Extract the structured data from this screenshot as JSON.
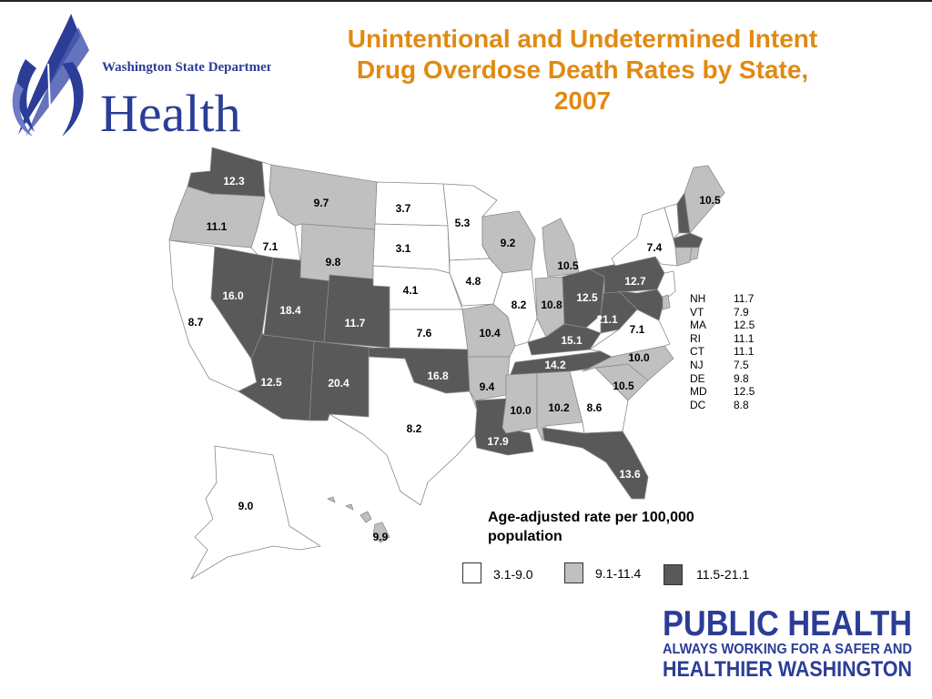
{
  "logo": {
    "org_line": "Washington State Department of",
    "org_word": "Health"
  },
  "title": {
    "line1": "Unintentional and Undetermined Intent",
    "line2": "Drug Overdose Death Rates by State,",
    "line3": "2007"
  },
  "colors": {
    "low": "#ffffff",
    "mid": "#c0c0c0",
    "high": "#595959",
    "title": "#e08a12",
    "brand": "#2b3d97"
  },
  "map_labels": [
    {
      "state": "WA",
      "value": "12.3"
    },
    {
      "state": "OR",
      "value": "11.1"
    },
    {
      "state": "CA",
      "value": "8.7"
    },
    {
      "state": "ID",
      "value": "7.1"
    },
    {
      "state": "NV",
      "value": "16.0"
    },
    {
      "state": "UT",
      "value": "18.4"
    },
    {
      "state": "AZ",
      "value": "12.5"
    },
    {
      "state": "MT",
      "value": "9.7"
    },
    {
      "state": "WY",
      "value": "9.8"
    },
    {
      "state": "CO",
      "value": "11.7"
    },
    {
      "state": "NM",
      "value": "20.4"
    },
    {
      "state": "ND",
      "value": "3.7"
    },
    {
      "state": "SD",
      "value": "3.1"
    },
    {
      "state": "NE",
      "value": "4.1"
    },
    {
      "state": "KS",
      "value": "7.6"
    },
    {
      "state": "OK",
      "value": "16.8"
    },
    {
      "state": "TX",
      "value": "8.2"
    },
    {
      "state": "MN",
      "value": "5.3"
    },
    {
      "state": "IA",
      "value": "4.8"
    },
    {
      "state": "MO",
      "value": "10.4"
    },
    {
      "state": "AR",
      "value": "9.4"
    },
    {
      "state": "LA",
      "value": "17.9"
    },
    {
      "state": "WI",
      "value": "9.2"
    },
    {
      "state": "IL",
      "value": "8.2"
    },
    {
      "state": "MI",
      "value": "10.5"
    },
    {
      "state": "IN",
      "value": "10.8"
    },
    {
      "state": "OH",
      "value": "12.5"
    },
    {
      "state": "KY",
      "value": "15.1"
    },
    {
      "state": "TN",
      "value": "14.2"
    },
    {
      "state": "MS",
      "value": "10.0"
    },
    {
      "state": "AL",
      "value": "10.2"
    },
    {
      "state": "GA",
      "value": "8.6"
    },
    {
      "state": "FL",
      "value": "13.6"
    },
    {
      "state": "SC",
      "value": "10.5"
    },
    {
      "state": "NC",
      "value": "10.0"
    },
    {
      "state": "VA",
      "value": "7.1"
    },
    {
      "state": "WV",
      "value": "21.1"
    },
    {
      "state": "PA",
      "value": "12.7"
    },
    {
      "state": "NY",
      "value": "7.4"
    },
    {
      "state": "ME",
      "value": "10.5"
    },
    {
      "state": "AK",
      "value": "9.0"
    },
    {
      "state": "HI",
      "value": "9.9"
    }
  ],
  "small_states": [
    {
      "abbr": "NH",
      "value": "11.7"
    },
    {
      "abbr": "VT",
      "value": "7.9"
    },
    {
      "abbr": "MA",
      "value": "12.5"
    },
    {
      "abbr": "RI",
      "value": "11.1"
    },
    {
      "abbr": "CT",
      "value": "11.1"
    },
    {
      "abbr": "NJ",
      "value": "7.5"
    },
    {
      "abbr": "DE",
      "value": "9.8"
    },
    {
      "abbr": "MD",
      "value": "12.5"
    },
    {
      "abbr": "DC",
      "value": "8.8"
    }
  ],
  "legend": {
    "title_line1": "Age-adjusted rate per 100,000",
    "title_line2": "population",
    "items": [
      {
        "label": "3.1-9.0",
        "color": "#ffffff"
      },
      {
        "label": "9.1-11.4",
        "color": "#c0c0c0"
      },
      {
        "label": "11.5-21.1",
        "color": "#595959"
      }
    ]
  },
  "footer_logo": {
    "line1": "PUBLIC HEALTH",
    "line2": "ALWAYS WORKING FOR A SAFER AND",
    "line3": "HEALTHIER WASHINGTON"
  }
}
